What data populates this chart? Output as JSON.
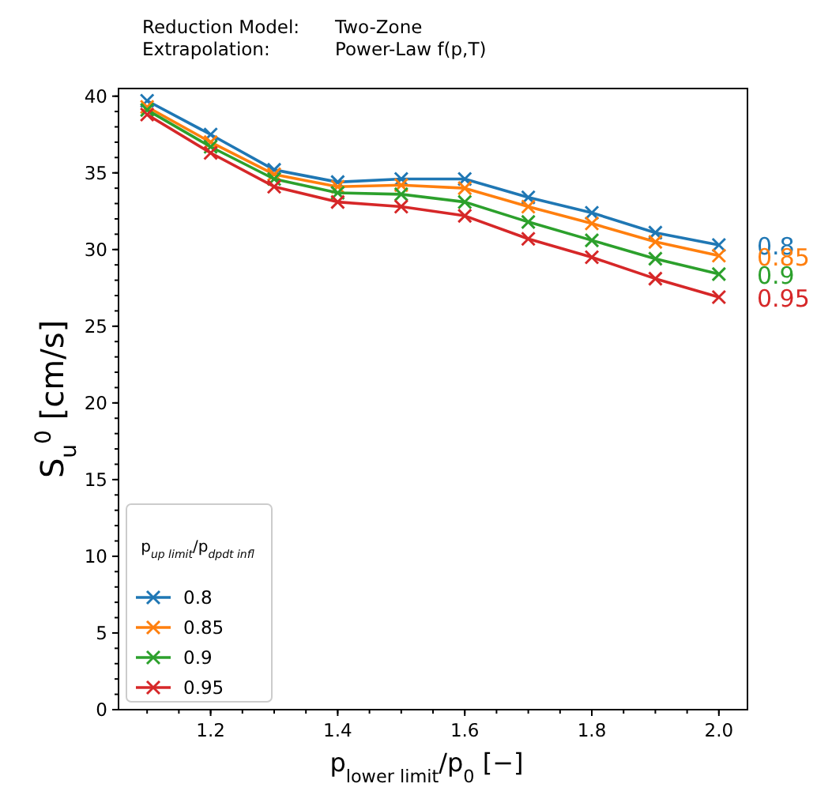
{
  "chart_data": {
    "type": "line",
    "title": "Reduction Model:\tTwo-Zone",
    "subtitle": "Extrapolation:\tPower-Law f(p,T)",
    "xlabel": "p$_{lower limit}$/p$_{0}$ [−]",
    "ylabel": "S$_{u}$$^{0}$  [cm/s]",
    "legend_title": "p$_{up limit}$/p$_{dpdt infl}$",
    "x": [
      1.1,
      1.2,
      1.3,
      1.4,
      1.5,
      1.6,
      1.7,
      1.8,
      1.9,
      2.0
    ],
    "series": [
      {
        "name": "0.8",
        "color": "#1f77b4",
        "values": [
          39.7,
          37.5,
          35.2,
          34.4,
          34.6,
          34.6,
          33.4,
          32.4,
          31.1,
          30.3
        ]
      },
      {
        "name": "0.85",
        "color": "#ff7f0e",
        "values": [
          39.3,
          37.0,
          34.9,
          34.1,
          34.2,
          34.0,
          32.8,
          31.7,
          30.5,
          29.6
        ]
      },
      {
        "name": "0.9",
        "color": "#2ca02c",
        "values": [
          39.1,
          36.7,
          34.6,
          33.7,
          33.6,
          33.1,
          31.8,
          30.6,
          29.4,
          28.4
        ]
      },
      {
        "name": "0.95",
        "color": "#d62728",
        "values": [
          38.8,
          36.3,
          34.1,
          33.1,
          32.8,
          32.2,
          30.7,
          29.5,
          28.1,
          26.9
        ]
      }
    ],
    "xlim": [
      1.055,
      2.045
    ],
    "ylim": [
      0,
      40.5
    ],
    "xticks": [
      1.2,
      1.4,
      1.6,
      1.8,
      {
        "value": 2,
        "label": "2.0"
      }
    ],
    "yticks": [
      0,
      5,
      10,
      15,
      20,
      25,
      30,
      35,
      40
    ],
    "grid": false,
    "legend": "bottom left",
    "marker": "cross",
    "line_style": "solid"
  }
}
